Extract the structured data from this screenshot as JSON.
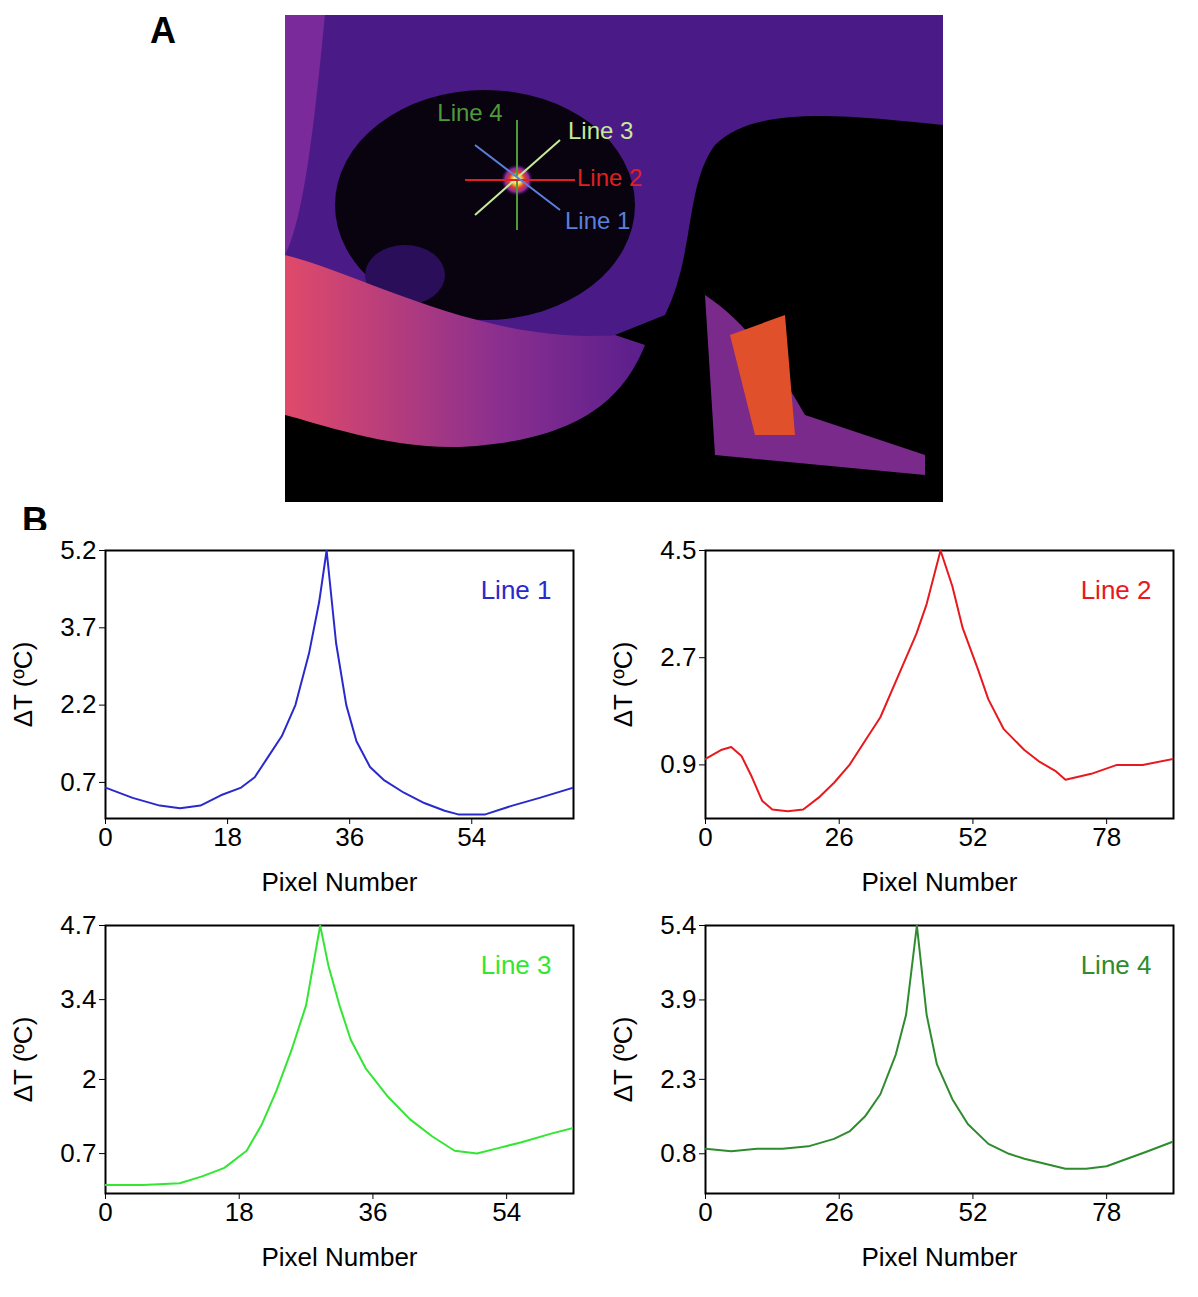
{
  "panel_labels": [
    "A",
    "B"
  ],
  "image": {
    "annotations": [
      {
        "label": "Line 4",
        "color": "#4e9a3a"
      },
      {
        "label": "Line 3",
        "color": "#c6ea9a"
      },
      {
        "label": "Line 2",
        "color": "#e02020"
      },
      {
        "label": "Line 1",
        "color": "#5a80dc"
      }
    ]
  },
  "chart_data": [
    {
      "type": "line",
      "title": "Line 1",
      "color": "#2a2acc",
      "xlabel": "Pixel Number",
      "ylabel": "ΔT (ºC)",
      "grid": false,
      "x": [
        0,
        4,
        8,
        11,
        14,
        17,
        20,
        22,
        24,
        26,
        28,
        30,
        31.5,
        32.6,
        34,
        35.5,
        37,
        39,
        41,
        44,
        47,
        50,
        52,
        56,
        60,
        64,
        69
      ],
      "values": [
        0.6,
        0.4,
        0.25,
        0.2,
        0.25,
        0.45,
        0.6,
        0.8,
        1.2,
        1.6,
        2.2,
        3.2,
        4.2,
        5.2,
        3.4,
        2.2,
        1.5,
        1.0,
        0.75,
        0.5,
        0.3,
        0.15,
        0.08,
        0.08,
        0.25,
        0.4,
        0.6
      ],
      "xlim": [
        0,
        69
      ],
      "xticks": [
        0,
        18,
        36,
        54
      ],
      "ylim": [
        0,
        5.2
      ],
      "yticks": [
        0.7,
        2.2,
        3.7,
        5.2
      ]
    },
    {
      "type": "line",
      "title": "Line 2",
      "color": "#e8191e",
      "xlabel": "Pixel Number",
      "ylabel": "ΔT (ºC)",
      "grid": false,
      "x": [
        0,
        3,
        5,
        7,
        9,
        11,
        13,
        16,
        19,
        22,
        25,
        28,
        31,
        34,
        38,
        41,
        43,
        45.7,
        48,
        50,
        53,
        55,
        58,
        62,
        65,
        68,
        70,
        75,
        80,
        85,
        91
      ],
      "values": [
        1.0,
        1.15,
        1.2,
        1.05,
        0.7,
        0.3,
        0.15,
        0.12,
        0.15,
        0.35,
        0.6,
        0.9,
        1.3,
        1.7,
        2.5,
        3.1,
        3.6,
        4.5,
        3.9,
        3.2,
        2.5,
        2.0,
        1.5,
        1.15,
        0.95,
        0.8,
        0.65,
        0.75,
        0.9,
        0.9,
        1.0
      ],
      "xlim": [
        0,
        91
      ],
      "xticks": [
        0,
        26,
        52,
        78
      ],
      "ylim": [
        0,
        4.5
      ],
      "yticks": [
        0.9,
        2.7,
        4.5
      ]
    },
    {
      "type": "line",
      "title": "Line 3",
      "color": "#33e633",
      "xlabel": "Pixel Number",
      "ylabel": "ΔT (ºC)",
      "grid": false,
      "x": [
        0,
        5,
        10,
        13,
        16,
        19,
        21,
        23,
        25,
        27,
        28.9,
        30,
        31.5,
        33,
        35,
        38,
        41,
        44,
        47,
        50,
        53,
        56,
        60,
        63
      ],
      "values": [
        0.15,
        0.15,
        0.18,
        0.3,
        0.45,
        0.75,
        1.2,
        1.8,
        2.5,
        3.3,
        4.7,
        4.0,
        3.3,
        2.7,
        2.2,
        1.7,
        1.3,
        1.0,
        0.75,
        0.7,
        0.8,
        0.9,
        1.05,
        1.15
      ],
      "xlim": [
        0,
        63
      ],
      "xticks": [
        0,
        18,
        36,
        54
      ],
      "ylim": [
        0,
        4.7
      ],
      "yticks": [
        0.7,
        2.0,
        3.4,
        4.7
      ]
    },
    {
      "type": "line",
      "title": "Line 4",
      "color": "#2e8b2e",
      "xlabel": "Pixel Number",
      "ylabel": "ΔT (ºC)",
      "grid": false,
      "x": [
        0,
        5,
        10,
        15,
        20,
        25,
        28,
        31,
        34,
        37,
        39,
        41.1,
        43,
        45,
        48,
        51,
        55,
        59,
        62,
        66,
        70,
        74,
        78,
        82,
        86,
        91
      ],
      "values": [
        0.9,
        0.85,
        0.9,
        0.9,
        0.95,
        1.1,
        1.25,
        1.55,
        2.0,
        2.8,
        3.6,
        5.4,
        3.6,
        2.6,
        1.9,
        1.4,
        1.0,
        0.8,
        0.7,
        0.6,
        0.5,
        0.5,
        0.55,
        0.7,
        0.85,
        1.05
      ],
      "xlim": [
        0,
        91
      ],
      "xticks": [
        0,
        26,
        52,
        78
      ],
      "ylim": [
        0,
        5.4
      ],
      "yticks": [
        0.8,
        2.3,
        3.9,
        5.4
      ]
    }
  ]
}
